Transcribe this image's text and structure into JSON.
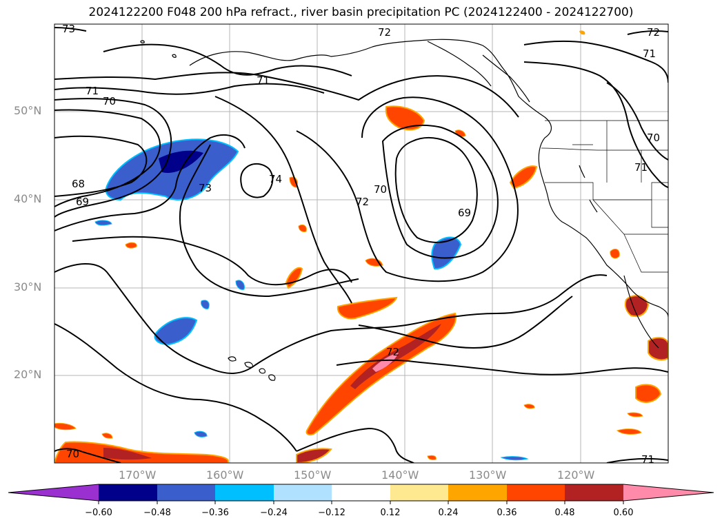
{
  "title": "2024122200 F048 200 hPa refract., river basin precipitation PC (2024122400 - 2024122700)",
  "lat_labels": [
    "50°N",
    "40°N",
    "30°N",
    "20°N"
  ],
  "lon_labels": [
    "170°W",
    "160°W",
    "150°W",
    "140°W",
    "130°W",
    "120°W"
  ],
  "contour_labels": [
    "73",
    "72",
    "71",
    "71",
    "70",
    "68",
    "69",
    "74",
    "73",
    "72",
    "70",
    "69",
    "72",
    "70",
    "71",
    "70",
    "71",
    "72",
    "71",
    "70"
  ],
  "colorbar": {
    "ticks": [
      "−0.60",
      "−0.48",
      "−0.36",
      "−0.24",
      "−0.12",
      "0.12",
      "0.24",
      "0.36",
      "0.48",
      "0.60"
    ],
    "colors": [
      "#9b30d0",
      "#00008b",
      "#3a5fcd",
      "#00bfff",
      "#b0e2ff",
      "#ffffff",
      "#ffe990",
      "#ffa500",
      "#ff4500",
      "#b22222",
      "#ff8aaa",
      "#ff8aaa"
    ]
  }
}
